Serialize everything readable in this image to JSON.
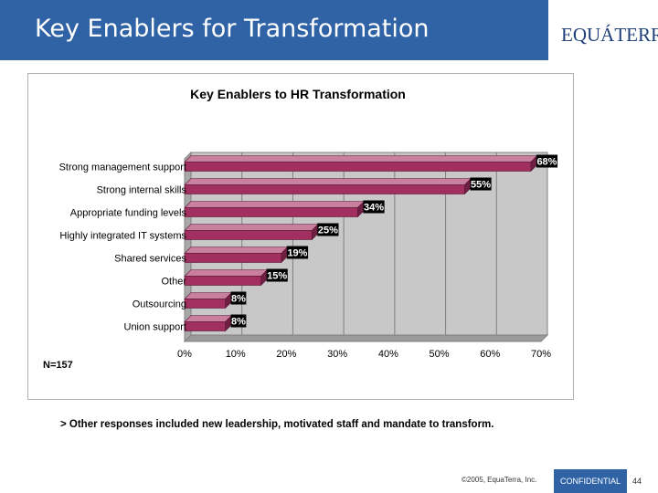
{
  "slide": {
    "title": "Key Enablers for Transformation",
    "logo_text": "EQUÁTERRA",
    "footnote": "> Other responses included new leadership, motivated staff and mandate to transform.",
    "copyright": "©2005, EquaTerra, Inc.",
    "confidential": "CONFIDENTIAL",
    "page_number": "44",
    "sample_size": "N=157"
  },
  "colors": {
    "header": "#2f63a6",
    "bar": "#a12f5f",
    "plot_bg": "#c8c8c8",
    "label_bg": "#000000"
  },
  "chart_data": {
    "type": "bar",
    "orientation": "horizontal",
    "title": "Key Enablers to HR Transformation",
    "categories": [
      "Strong management support",
      "Strong internal skills",
      "Appropriate funding levels",
      "Highly integrated IT systems",
      "Shared services",
      "Other",
      "Outsourcing",
      "Union support"
    ],
    "values": [
      68,
      55,
      34,
      25,
      19,
      15,
      8,
      8
    ],
    "value_labels": [
      "68%",
      "55%",
      "34%",
      "25%",
      "19%",
      "15%",
      "8%",
      "8%"
    ],
    "xlim": [
      0,
      70
    ],
    "xticks": [
      0,
      10,
      20,
      30,
      40,
      50,
      60,
      70
    ],
    "xtick_labels": [
      "0%",
      "10%",
      "20%",
      "30%",
      "40%",
      "50%",
      "60%",
      "70%"
    ],
    "grid": "vertical gridlines",
    "legend": "none"
  }
}
